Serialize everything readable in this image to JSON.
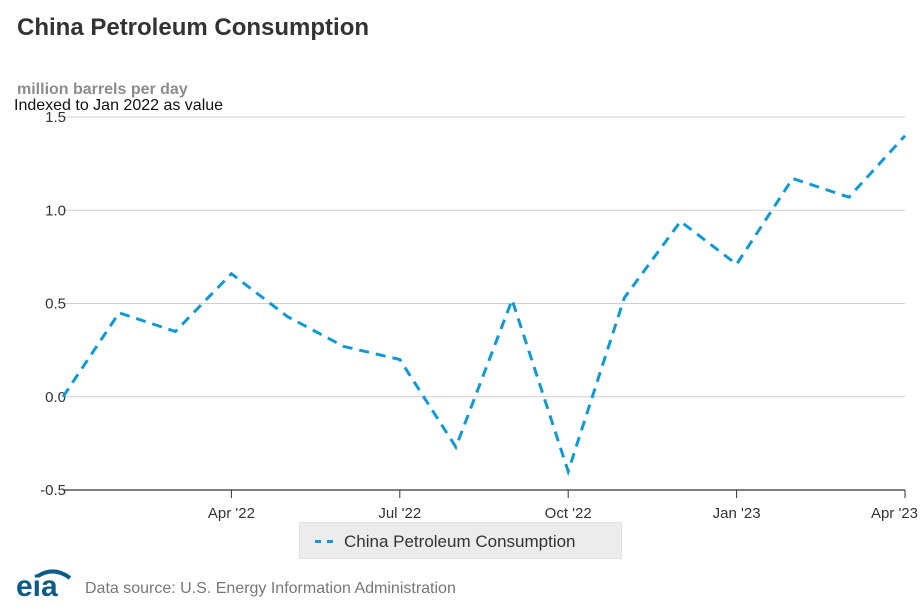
{
  "header": {
    "title": "China Petroleum Consumption",
    "unit": "million barrels per day",
    "subtitle": "Indexed to Jan 2022 as value"
  },
  "colors": {
    "series": "#0f9ad6",
    "grid": "#cfcfcf",
    "axis": "#333333",
    "logo": "#0a5a8a"
  },
  "chart_data": {
    "type": "line",
    "title": "China Petroleum Consumption",
    "ylabel": "million barrels per day",
    "subtitle": "Indexed to Jan 2022 as value",
    "ylim": [
      -0.5,
      1.5
    ],
    "yticks": [
      "1.5",
      "1.0",
      "0.5",
      "0.0",
      "-0.5"
    ],
    "xticks": [
      {
        "label": "Apr '22",
        "month": 3
      },
      {
        "label": "Jul '22",
        "month": 6
      },
      {
        "label": "Oct '22",
        "month": 9
      },
      {
        "label": "Jan '23",
        "month": 12
      },
      {
        "label": "Apr '23",
        "month": 15
      }
    ],
    "grid": true,
    "line_style": "dashed",
    "legend_position": "bottom-center",
    "series": [
      {
        "name": "China Petroleum Consumption",
        "x": [
          "2022-01",
          "2022-02",
          "2022-03",
          "2022-04",
          "2022-05",
          "2022-06",
          "2022-07",
          "2022-08",
          "2022-09",
          "2022-10",
          "2022-11",
          "2022-12",
          "2023-01",
          "2023-02",
          "2023-03",
          "2023-04"
        ],
        "values": [
          0.0,
          0.45,
          0.35,
          0.66,
          0.43,
          0.27,
          0.2,
          -0.27,
          0.52,
          -0.4,
          0.53,
          0.94,
          0.71,
          1.17,
          1.07,
          1.4
        ]
      }
    ]
  },
  "legend": {
    "items": [
      {
        "label": "China Petroleum Consumption"
      }
    ]
  },
  "footer": {
    "logo_text": "eia",
    "source": "Data source: U.S. Energy Information Administration"
  }
}
